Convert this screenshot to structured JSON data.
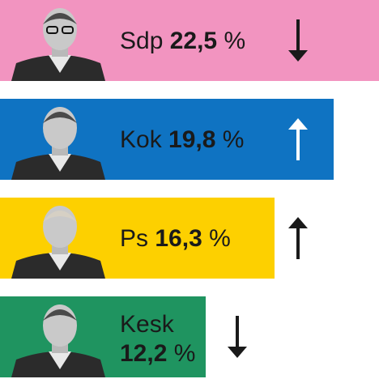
{
  "chart_data": {
    "type": "bar",
    "orientation": "horizontal",
    "categories": [
      "Sdp",
      "Kok",
      "Ps",
      "Kesk"
    ],
    "values": [
      22.5,
      19.8,
      16.3,
      12.2
    ],
    "value_labels": [
      "22,5",
      "19,8",
      "16,3",
      "12,2"
    ],
    "unit": "%",
    "trend": [
      "down",
      "up",
      "up",
      "down"
    ],
    "colors": [
      "#f294c0",
      "#0f73c2",
      "#fdd000",
      "#1f9460"
    ],
    "trend_icons": [
      "arrow-down-icon",
      "arrow-up-icon",
      "arrow-up-icon",
      "arrow-down-icon"
    ],
    "portrait_icons": [
      "portrait-photo-icon",
      "portrait-photo-icon",
      "portrait-photo-icon",
      "portrait-photo-icon"
    ],
    "title": "",
    "xlabel": "",
    "ylabel": "",
    "legend": "none",
    "grid": false
  }
}
